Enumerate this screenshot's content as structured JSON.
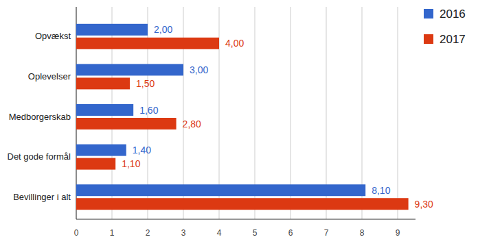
{
  "chart_data": {
    "type": "bar",
    "orientation": "horizontal",
    "categories": [
      "Opvækst",
      "Oplevelser",
      "Medborgerskab",
      "Det gode formål",
      "Bevillinger i alt"
    ],
    "series": [
      {
        "name": "2016",
        "color": "#3366cc",
        "values": [
          2,
          3,
          1.6,
          1.4,
          8.1
        ],
        "value_labels": [
          "2,00",
          "3,00",
          "1,60",
          "1,40",
          "8,10"
        ]
      },
      {
        "name": "2017",
        "color": "#dc3912",
        "values": [
          4,
          1.5,
          2.8,
          1.1,
          9.3
        ],
        "value_labels": [
          "4,00",
          "1,50",
          "2,80",
          "1,10",
          "9,30"
        ]
      }
    ],
    "xlim": [
      0,
      9.5
    ],
    "xticks": [
      0,
      1,
      2,
      3,
      4,
      5,
      6,
      7,
      8,
      9
    ],
    "grid": true,
    "legend": "top-right",
    "data_labels": true
  }
}
